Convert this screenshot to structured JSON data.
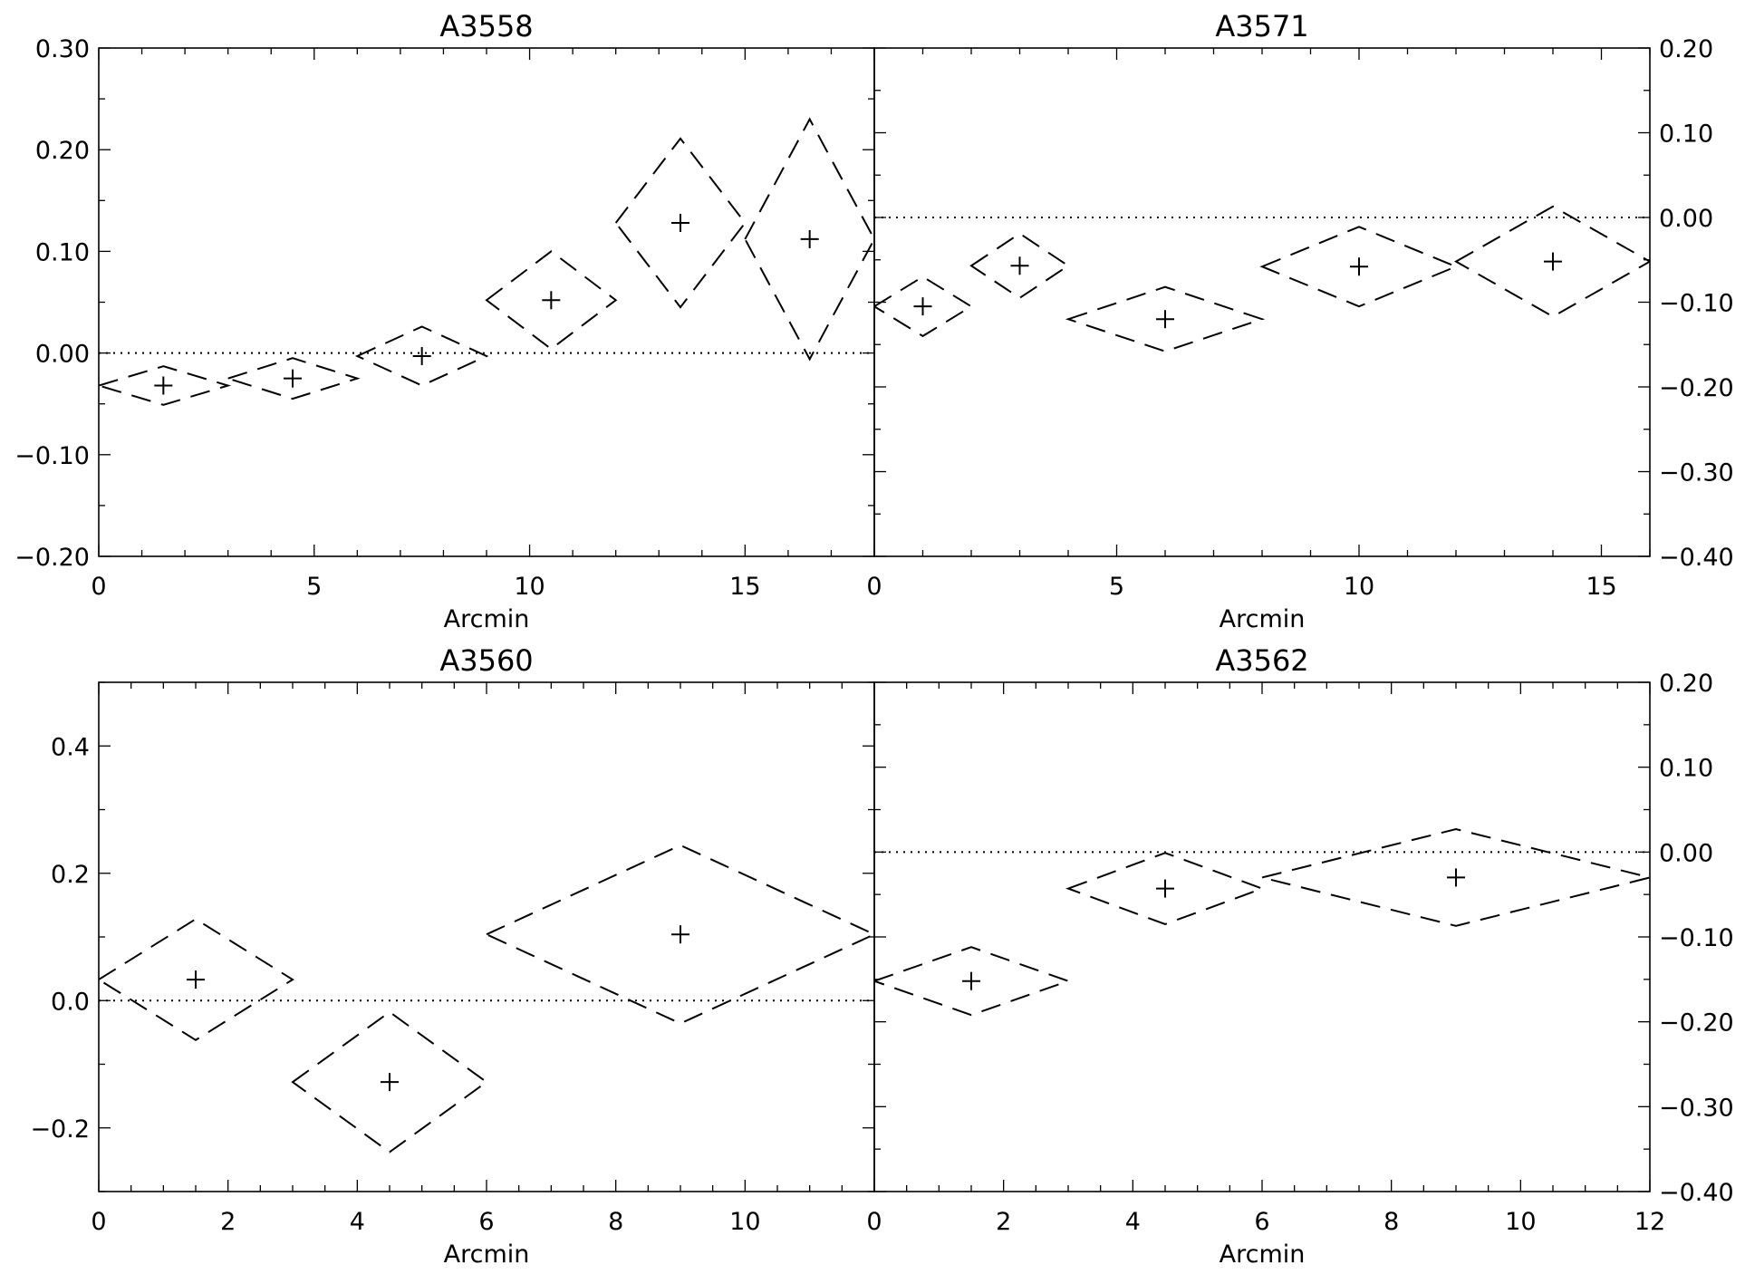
{
  "chart_data": [
    {
      "type": "scatter",
      "title": "A3558",
      "xlabel": "Arcmin",
      "ylabel": "",
      "xlim": [
        0,
        18
      ],
      "ylim": [
        -0.2,
        0.3
      ],
      "xticks": [
        0,
        5,
        10,
        15
      ],
      "xtick_labels": [
        "0",
        "5",
        "10",
        "15"
      ],
      "yticks": [
        -0.2,
        -0.1,
        0.0,
        0.1,
        0.2,
        0.3
      ],
      "ytick_labels": [
        "-0.20",
        "-0.10",
        "0.00",
        "0.10",
        "0.20",
        "0.30"
      ],
      "y_axis_side": "left",
      "x_minor_step": 1,
      "y_minor_step": 0.05,
      "reference_line": 0.0,
      "points": [
        {
          "x": 1.5,
          "y": -0.032,
          "dx": 1.5,
          "dy": 0.019
        },
        {
          "x": 4.5,
          "y": -0.025,
          "dx": 1.5,
          "dy": 0.02
        },
        {
          "x": 7.5,
          "y": -0.003,
          "dx": 1.5,
          "dy": 0.029
        },
        {
          "x": 10.5,
          "y": 0.052,
          "dx": 1.5,
          "dy": 0.048
        },
        {
          "x": 13.5,
          "y": 0.128,
          "dx": 1.5,
          "dy": 0.083
        },
        {
          "x": 16.5,
          "y": 0.112,
          "dx": 1.5,
          "dy": 0.118
        }
      ]
    },
    {
      "type": "scatter",
      "title": "A3571",
      "xlabel": "Arcmin",
      "ylabel": "",
      "xlim": [
        0,
        16
      ],
      "ylim": [
        -0.4,
        0.2
      ],
      "xticks": [
        0,
        5,
        10,
        15
      ],
      "xtick_labels": [
        "0",
        "5",
        "10",
        "15"
      ],
      "yticks": [
        -0.4,
        -0.3,
        -0.2,
        -0.1,
        0.0,
        0.1,
        0.2
      ],
      "ytick_labels": [
        "-0.40",
        "-0.30",
        "-0.20",
        "-0.10",
        "0.00",
        "0.10",
        "0.20"
      ],
      "y_axis_side": "right",
      "x_minor_step": 1,
      "y_minor_step": 0.05,
      "reference_line": 0.0,
      "points": [
        {
          "x": 1.0,
          "y": -0.105,
          "dx": 1.0,
          "dy": 0.035
        },
        {
          "x": 3.0,
          "y": -0.057,
          "dx": 1.0,
          "dy": 0.038
        },
        {
          "x": 6.0,
          "y": -0.12,
          "dx": 2.0,
          "dy": 0.038
        },
        {
          "x": 10.0,
          "y": -0.058,
          "dx": 2.0,
          "dy": 0.047
        },
        {
          "x": 14.0,
          "y": -0.052,
          "dx": 2.0,
          "dy": 0.065
        }
      ]
    },
    {
      "type": "scatter",
      "title": "A3560",
      "xlabel": "Arcmin",
      "ylabel": "",
      "xlim": [
        0,
        12
      ],
      "ylim": [
        -0.3,
        0.5
      ],
      "xticks": [
        0,
        2,
        4,
        6,
        8,
        10
      ],
      "xtick_labels": [
        "0",
        "2",
        "4",
        "6",
        "8",
        "10"
      ],
      "yticks": [
        -0.2,
        0.0,
        0.2,
        0.4
      ],
      "ytick_labels": [
        "-0.2",
        "0.0",
        "0.2",
        "0.4"
      ],
      "y_axis_side": "left",
      "x_minor_step": 0.5,
      "y_minor_step": 0.1,
      "reference_line": 0.0,
      "points": [
        {
          "x": 1.5,
          "y": 0.033,
          "dx": 1.5,
          "dy": 0.095
        },
        {
          "x": 4.5,
          "y": -0.128,
          "dx": 1.5,
          "dy": 0.11
        },
        {
          "x": 9.0,
          "y": 0.104,
          "dx": 3.0,
          "dy": 0.14
        }
      ]
    },
    {
      "type": "scatter",
      "title": "A3562",
      "xlabel": "Arcmin",
      "ylabel": "",
      "xlim": [
        0,
        12
      ],
      "ylim": [
        -0.4,
        0.2
      ],
      "xticks": [
        0,
        2,
        4,
        6,
        8,
        10,
        12
      ],
      "xtick_labels": [
        "0",
        "2",
        "4",
        "6",
        "8",
        "10",
        "12"
      ],
      "yticks": [
        -0.4,
        -0.3,
        -0.2,
        -0.1,
        0.0,
        0.1,
        0.2
      ],
      "ytick_labels": [
        "-0.40",
        "-0.30",
        "-0.20",
        "-0.10",
        "0.00",
        "0.10",
        "0.20"
      ],
      "y_axis_side": "right",
      "x_minor_step": 0.5,
      "y_minor_step": 0.05,
      "reference_line": 0.0,
      "points": [
        {
          "x": 1.5,
          "y": -0.152,
          "dx": 1.5,
          "dy": 0.04
        },
        {
          "x": 4.5,
          "y": -0.043,
          "dx": 1.5,
          "dy": 0.042
        },
        {
          "x": 9.0,
          "y": -0.03,
          "dx": 3.0,
          "dy": 0.057
        }
      ]
    }
  ]
}
